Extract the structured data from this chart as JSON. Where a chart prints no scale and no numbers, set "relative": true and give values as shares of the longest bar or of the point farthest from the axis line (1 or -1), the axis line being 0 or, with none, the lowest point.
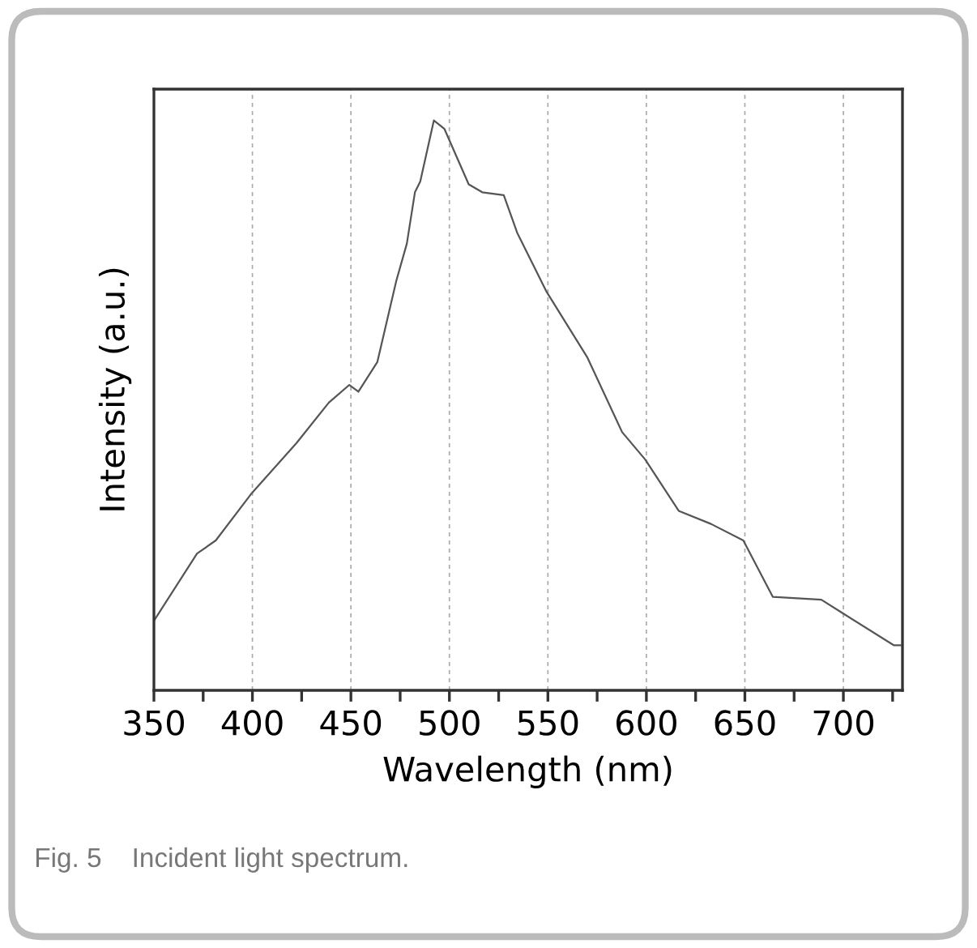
{
  "chart_data": {
    "type": "line",
    "xlabel": "Wavelength (nm)",
    "ylabel": "Intensity (a.u.)",
    "relative": true,
    "grid": "x",
    "xlim": [
      350,
      730
    ],
    "xticks": [
      350,
      {
        "value": 375,
        "label": null
      },
      400,
      {
        "value": 425,
        "label": null
      },
      450,
      {
        "value": 475,
        "label": null
      },
      500,
      {
        "value": 525,
        "label": null
      },
      550,
      {
        "value": 575,
        "label": null
      },
      600,
      {
        "value": 625,
        "label": null
      },
      650,
      {
        "value": 675,
        "label": null
      },
      700,
      {
        "value": 725,
        "label": null
      }
    ],
    "annotations": [
      "Fig. 5    Incident light spectrum."
    ],
    "series": [
      {
        "color": "#555555",
        "x": [
          350,
          371.9,
          381.4,
          399.2,
          422.4,
          438.8,
          449.2,
          453.8,
          463.4,
          473,
          478.4,
          482.5,
          485.2,
          492.1,
          497.5,
          509.8,
          516.7,
          527.6,
          534.4,
          549.4,
          569.9,
          587.7,
          599.4,
          616.4,
          632.8,
          649.2,
          664.2,
          688.8,
          699.8,
          725.7,
          729
        ],
        "values": [
          0.122,
          0.24,
          0.263,
          0.344,
          0.434,
          0.505,
          0.536,
          0.524,
          0.576,
          0.718,
          0.784,
          0.874,
          0.893,
          1,
          0.985,
          0.888,
          0.874,
          0.869,
          0.803,
          0.699,
          0.585,
          0.453,
          0.405,
          0.315,
          0.292,
          0.263,
          0.164,
          0.159,
          0.135,
          0.079,
          0.079
        ]
      }
    ]
  }
}
